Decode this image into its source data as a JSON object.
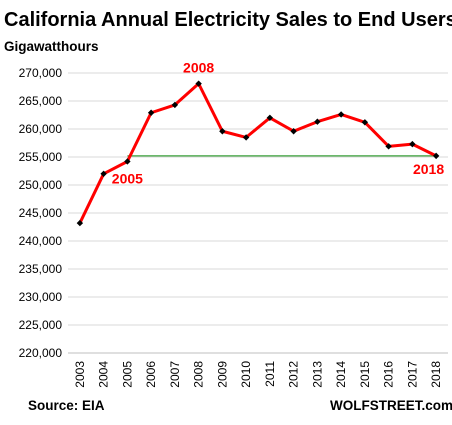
{
  "chart_data": {
    "type": "line",
    "title": "California Annual Electricity Sales to End Users",
    "ylabel": "Gigawatthours",
    "xlabel": "",
    "x": [
      "2003",
      "2004",
      "2005",
      "2006",
      "2007",
      "2008",
      "2009",
      "2010",
      "2011",
      "2012",
      "2013",
      "2014",
      "2015",
      "2016",
      "2017",
      "2018"
    ],
    "series": [
      {
        "values": [
          243200,
          252000,
          254200,
          262900,
          264300,
          268100,
          259600,
          258500,
          262000,
          259600,
          261300,
          262600,
          261200,
          256900,
          257300,
          255200
        ],
        "color": "#ff0000"
      }
    ],
    "reference_line": {
      "value": 255200,
      "from": "2005",
      "to": "2018",
      "color": "#3aa13a"
    },
    "ylim": [
      220000,
      270000
    ],
    "yticks": [
      220000,
      225000,
      230000,
      235000,
      240000,
      245000,
      250000,
      255000,
      260000,
      265000,
      270000
    ],
    "ytick_labels": [
      "220,000",
      "225,000",
      "230,000",
      "235,000",
      "240,000",
      "245,000",
      "250,000",
      "255,000",
      "260,000",
      "265,000",
      "270,000"
    ],
    "grid": true,
    "annotations": [
      {
        "text": "2005",
        "at": "2005"
      },
      {
        "text": "2008",
        "at": "2008"
      },
      {
        "text": "2018",
        "at": "2018"
      }
    ],
    "annotation_color": "#ff0000",
    "marker_color": "#000000",
    "grid_color": "#d9d9d9"
  },
  "footer": {
    "source": "Source: EIA",
    "brand": "WOLFSTREET.com"
  }
}
